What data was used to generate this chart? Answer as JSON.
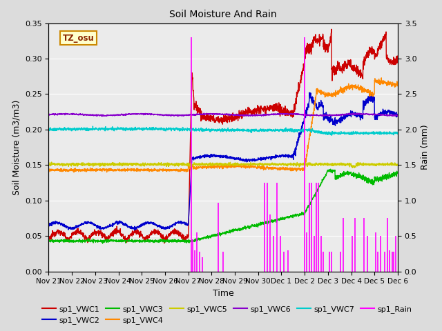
{
  "title": "Soil Moisture And Rain",
  "xlabel": "Time",
  "ylabel_left": "Soil Moisture (m3/m3)",
  "ylabel_right": "Rain (mm)",
  "ylim_left": [
    0.0,
    0.35
  ],
  "ylim_right": [
    0.0,
    3.5
  ],
  "bg_color": "#dcdcdc",
  "plot_bg": "#ebebeb",
  "annotation_text": "TZ_osu",
  "annotation_color": "#8b2500",
  "annotation_bg": "#ffffcc",
  "annotation_border": "#cc8800",
  "colors": {
    "vwc1": "#cc0000",
    "vwc2": "#0000cc",
    "vwc3": "#00bb00",
    "vwc4": "#ff8800",
    "vwc5": "#cccc00",
    "vwc6": "#8800cc",
    "vwc7": "#00cccc",
    "rain": "#ff00ff"
  },
  "x_tick_labels": [
    "Nov 21",
    "Nov 22",
    "Nov 23",
    "Nov 24",
    "Nov 25",
    "Nov 26",
    "Nov 27",
    "Nov 28",
    "Nov 29",
    "Nov 30",
    "Dec 1",
    "Dec 2",
    "Dec 3",
    "Dec 4",
    "Dec 5",
    "Dec 6"
  ]
}
